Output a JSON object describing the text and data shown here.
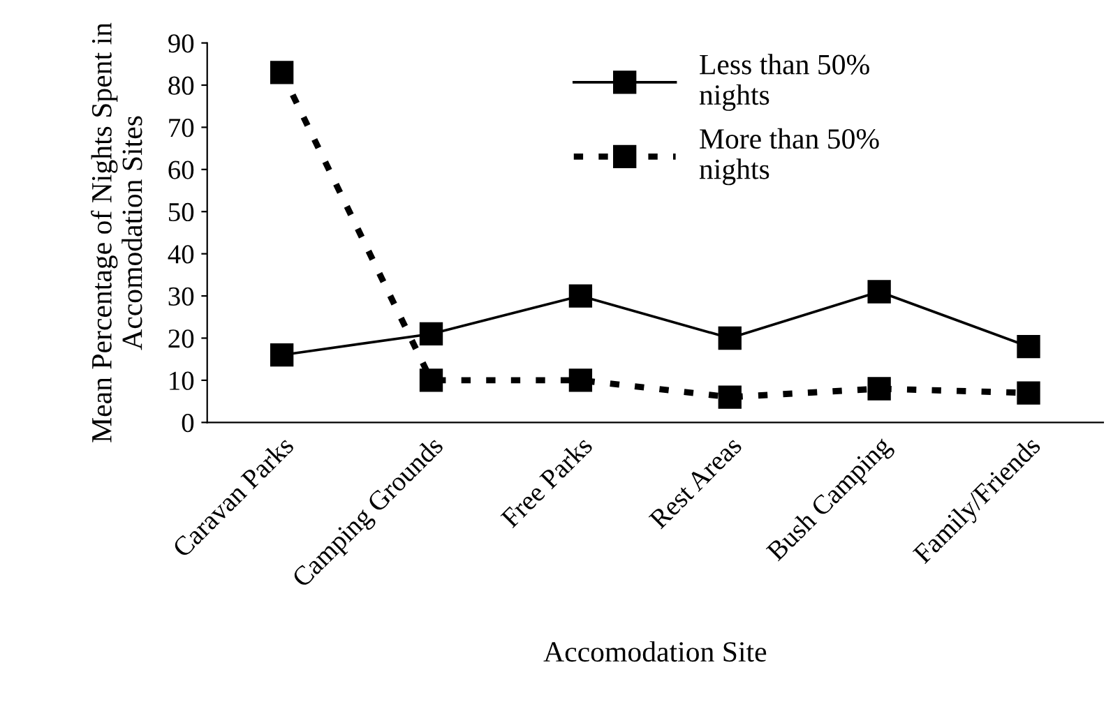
{
  "chart_data": {
    "type": "line",
    "xlabel": "Accomodation Site",
    "ylabel": "Mean Percentage of Nights Spent in\nAccomodation Sites",
    "categories": [
      "Caravan Parks",
      "Camping Grounds",
      "Free Parks",
      "Rest Areas",
      "Bush Camping",
      "Family/Friends"
    ],
    "series": [
      {
        "name": "Less than 50%\nnights",
        "color": "#000000",
        "line_style": "solid",
        "values": [
          16,
          21,
          30,
          20,
          31,
          18
        ]
      },
      {
        "name": "More than 50%\nnights",
        "color": "#000000",
        "line_style": "dotted",
        "values": [
          83,
          10,
          10,
          6,
          8,
          7
        ]
      }
    ],
    "ylim": [
      0,
      90
    ],
    "yticks": [
      0,
      10,
      20,
      30,
      40,
      50,
      60,
      70,
      80,
      90
    ],
    "marker": "square",
    "grid": false,
    "legend": "top right"
  }
}
